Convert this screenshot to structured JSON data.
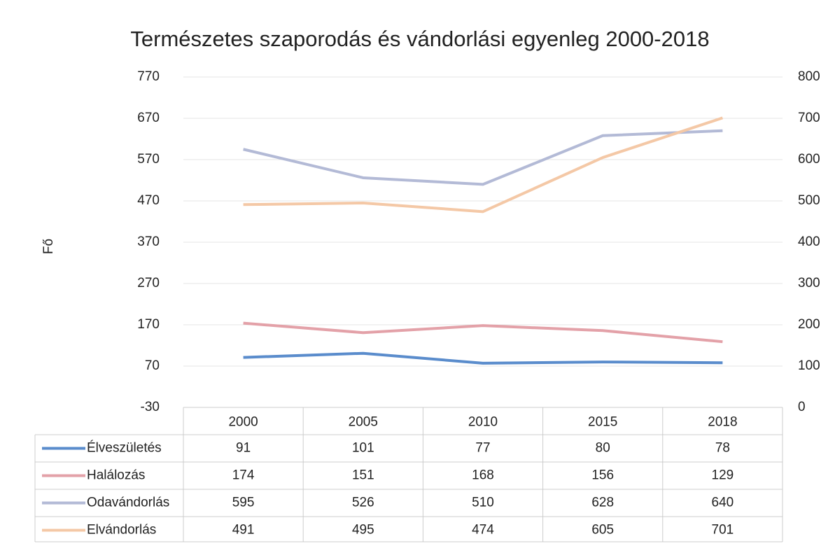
{
  "chart_data": {
    "type": "line",
    "title": "Természetes szaporodás és vándorlási egyenleg 2000-2018",
    "y_label": "Fő",
    "categories": [
      "2000",
      "2005",
      "2010",
      "2015",
      "2018"
    ],
    "series": [
      {
        "name": "Élveszületés",
        "color": "#5a8ccc",
        "values": [
          91,
          101,
          77,
          80,
          78
        ]
      },
      {
        "name": "Halálozás",
        "color": "#e3a1a8",
        "values": [
          174,
          151,
          168,
          156,
          129
        ]
      },
      {
        "name": "Odavándorlás",
        "color": "#b3bad6",
        "values": [
          595,
          526,
          510,
          628,
          640
        ]
      },
      {
        "name": "Elvándorlás",
        "color": "#f4c8a6",
        "values": [
          491,
          495,
          474,
          605,
          701
        ],
        "axis": "y2"
      }
    ],
    "ylim": [
      -30,
      770
    ],
    "yticks": [
      -30,
      70,
      170,
      270,
      370,
      470,
      570,
      670,
      770
    ],
    "y2lim": [
      0,
      800
    ],
    "y2ticks": [
      0,
      100,
      200,
      300,
      400,
      500,
      600,
      700,
      800
    ],
    "grid": true,
    "data_table": true
  }
}
